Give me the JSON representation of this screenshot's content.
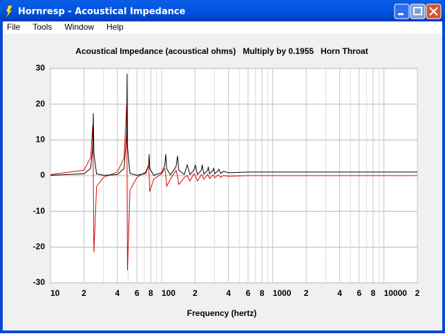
{
  "window": {
    "title": "Hornresp - Acoustical Impedance",
    "menu": [
      "File",
      "Tools",
      "Window",
      "Help"
    ]
  },
  "chart_data": {
    "type": "line",
    "title": "Acoustical Impedance (acoustical ohms)   Multiply by 0.1955   Horn Throat",
    "x_label": "Frequency (hertz)",
    "x_log": true,
    "grid": true,
    "xlim": [
      10,
      20000
    ],
    "xticks": [
      10,
      {
        "value": 20,
        "label": "2"
      },
      {
        "value": 40,
        "label": "4"
      },
      {
        "value": 60,
        "label": "6"
      },
      {
        "value": 80,
        "label": "8"
      },
      100,
      {
        "value": 200,
        "label": "2"
      },
      {
        "value": 400,
        "label": "4"
      },
      {
        "value": 600,
        "label": "6"
      },
      {
        "value": 800,
        "label": "8"
      },
      1000,
      {
        "value": 2000,
        "label": "2"
      },
      {
        "value": 4000,
        "label": "4"
      },
      {
        "value": 6000,
        "label": "6"
      },
      {
        "value": 8000,
        "label": "8"
      },
      10000,
      {
        "value": 20000,
        "label": "2"
      }
    ],
    "xminorticks": [
      30,
      50,
      70,
      90,
      300,
      500,
      700,
      900,
      3000,
      5000,
      7000,
      9000
    ],
    "ylim": [
      -30,
      30
    ],
    "yticks": [
      30,
      20,
      10,
      0,
      -10,
      -20,
      -30
    ],
    "x": [
      10,
      20,
      23,
      24,
      24.3,
      24.6,
      26,
      30,
      40,
      46,
      48.5,
      48.9,
      49.3,
      52,
      60,
      72,
      76.5,
      77.3,
      78.2,
      85,
      100,
      107,
      109,
      111,
      120,
      135,
      139,
      143,
      160,
      170,
      180,
      195,
      201,
      210,
      228,
      232,
      240,
      260,
      263,
      270,
      290,
      294,
      300,
      325,
      328,
      340,
      360,
      400,
      600,
      1000,
      2000,
      5000,
      20000
    ],
    "series": [
      {
        "color": "#000000",
        "values": [
          0.1,
          0.5,
          2,
          8,
          17.5,
          6,
          0.5,
          0.1,
          0.3,
          2,
          12,
          28.5,
          8,
          0.6,
          0.1,
          0.6,
          3,
          6,
          2,
          0.1,
          0.8,
          3,
          6,
          2,
          0.2,
          2.5,
          5.5,
          1.5,
          0.3,
          3,
          0.3,
          1.5,
          3,
          0.3,
          1.5,
          3,
          0.4,
          1.5,
          2.5,
          0.5,
          1.5,
          2,
          0.5,
          1.5,
          1.8,
          0.6,
          1.2,
          0.8,
          1,
          1,
          1,
          1,
          1
        ]
      },
      {
        "color": "#e00000",
        "values": [
          0.3,
          1.5,
          5,
          14,
          0,
          -21.5,
          -3,
          -0.5,
          1,
          5,
          20,
          0,
          -26.5,
          -4,
          -0.5,
          1,
          3,
          0,
          -4.5,
          -1,
          0.5,
          2,
          0,
          -3,
          -1,
          1.5,
          0,
          -2.5,
          -0.5,
          0,
          -1.5,
          0.5,
          0,
          -1.5,
          0.3,
          0,
          -1,
          0.3,
          0,
          -0.8,
          0.2,
          0,
          -0.6,
          0.2,
          0,
          -0.5,
          0,
          -0.2,
          0,
          0,
          0,
          0,
          0
        ]
      }
    ]
  }
}
